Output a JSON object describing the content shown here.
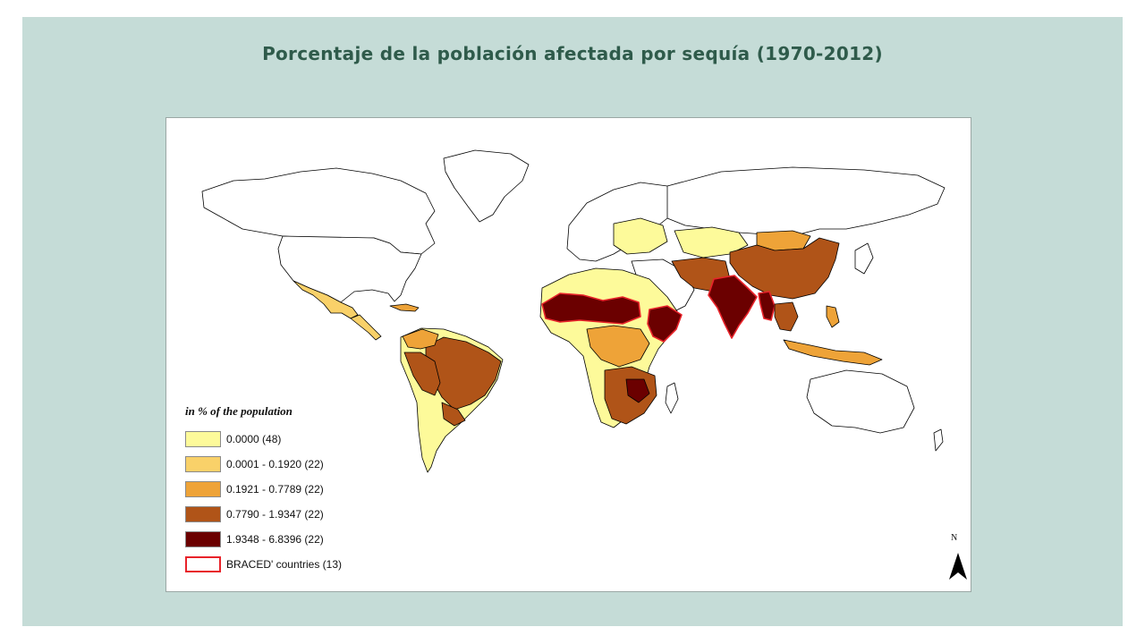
{
  "slide": {
    "title": "Porcentaje de la población afectada por sequía (1970-2012)",
    "title_color": "#2f5b4b",
    "background_color": "#c5dcd7"
  },
  "map": {
    "land_outline_color": "#000000",
    "no_data_fill": "#ffffff",
    "braced_outline_color": "#e8232a",
    "legend": {
      "title": "in % of the population",
      "items": [
        {
          "label": "0.0000 (48)",
          "color": "#fdfa9a"
        },
        {
          "label": "0.0001 - 0.1920 (22)",
          "color": "#f9d169"
        },
        {
          "label": "0.1921 - 0.7789 (22)",
          "color": "#eea338"
        },
        {
          "label": "0.7790 - 1.9347 (22)",
          "color": "#b05418"
        },
        {
          "label": "1.9348 - 6.8396 (22)",
          "color": "#6b0000"
        },
        {
          "label": "BRACED' countries (13)",
          "color": "#ffffff",
          "outline": "#e8232a"
        }
      ]
    },
    "north_arrow": {
      "label": "N",
      "icon": "north-arrow-icon"
    }
  }
}
